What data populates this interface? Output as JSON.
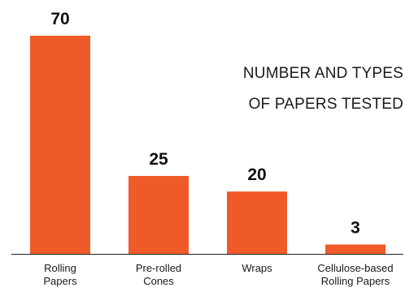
{
  "chart_data": {
    "type": "bar",
    "title_lines": [
      "NUMBER AND TYPES",
      "OF PAPERS TESTED"
    ],
    "categories": [
      [
        "Rolling",
        "Papers"
      ],
      [
        "Pre-rolled",
        "Cones"
      ],
      [
        "Wraps"
      ],
      [
        "Cellulose-based",
        "Rolling Papers"
      ]
    ],
    "values": [
      70,
      25,
      20,
      3
    ],
    "ylim": [
      0,
      70
    ],
    "grid": false,
    "legend": "none",
    "colors": {
      "bar": "#f05a28",
      "value_label": "#111111",
      "category_label": "#1a1a1a",
      "baseline": "#222222"
    }
  }
}
